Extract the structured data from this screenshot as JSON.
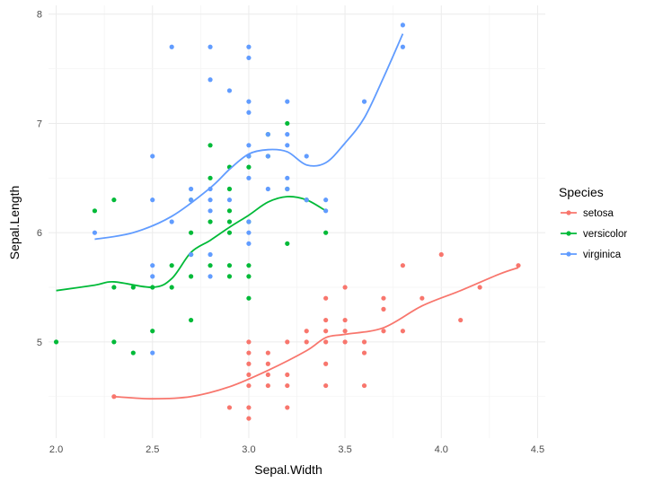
{
  "chart_data": {
    "type": "scatter",
    "xlabel": "Sepal.Width",
    "ylabel": "Sepal.Length",
    "xlim": [
      1.96,
      4.54
    ],
    "ylim": [
      4.12,
      8.08
    ],
    "x_ticks": [
      2.0,
      2.5,
      3.0,
      3.5,
      4.0,
      4.5
    ],
    "x_tick_labels": [
      "2.0",
      "2.5",
      "3.0",
      "3.5",
      "4.0",
      "4.5"
    ],
    "y_ticks": [
      5,
      6,
      7,
      8
    ],
    "y_tick_labels": [
      "5",
      "6",
      "7",
      "8"
    ],
    "grid": true,
    "legend": {
      "title": "Species",
      "position": "right"
    },
    "series": [
      {
        "name": "setosa",
        "color": "#F8766D",
        "points": [
          [
            2.3,
            4.5
          ],
          [
            2.9,
            4.4
          ],
          [
            3.0,
            4.4
          ],
          [
            3.2,
            4.4
          ],
          [
            3.0,
            4.3
          ],
          [
            3.0,
            4.6
          ],
          [
            3.1,
            4.6
          ],
          [
            3.2,
            4.6
          ],
          [
            3.4,
            4.6
          ],
          [
            3.6,
            4.6
          ],
          [
            3.0,
            4.7
          ],
          [
            3.1,
            4.7
          ],
          [
            3.2,
            4.7
          ],
          [
            3.0,
            4.8
          ],
          [
            3.1,
            4.8
          ],
          [
            3.4,
            4.8
          ],
          [
            3.0,
            4.9
          ],
          [
            3.1,
            4.9
          ],
          [
            3.6,
            4.9
          ],
          [
            3.0,
            5.0
          ],
          [
            3.2,
            5.0
          ],
          [
            3.3,
            5.0
          ],
          [
            3.4,
            5.0
          ],
          [
            3.5,
            5.0
          ],
          [
            3.6,
            5.0
          ],
          [
            3.3,
            5.1
          ],
          [
            3.4,
            5.1
          ],
          [
            3.5,
            5.1
          ],
          [
            3.7,
            5.1
          ],
          [
            3.8,
            5.1
          ],
          [
            3.4,
            5.2
          ],
          [
            3.5,
            5.2
          ],
          [
            4.1,
            5.2
          ],
          [
            3.7,
            5.3
          ],
          [
            3.4,
            5.4
          ],
          [
            3.7,
            5.4
          ],
          [
            3.9,
            5.4
          ],
          [
            3.5,
            5.5
          ],
          [
            4.2,
            5.5
          ],
          [
            3.8,
            5.7
          ],
          [
            4.4,
            5.7
          ],
          [
            4.0,
            5.8
          ]
        ],
        "trend": [
          [
            2.3,
            4.5
          ],
          [
            2.5,
            4.48
          ],
          [
            2.7,
            4.5
          ],
          [
            2.9,
            4.59
          ],
          [
            3.1,
            4.74
          ],
          [
            3.3,
            4.92
          ],
          [
            3.4,
            5.04
          ],
          [
            3.5,
            5.07
          ],
          [
            3.7,
            5.13
          ],
          [
            3.9,
            5.33
          ],
          [
            4.1,
            5.47
          ],
          [
            4.3,
            5.62
          ],
          [
            4.4,
            5.68
          ]
        ]
      },
      {
        "name": "versicolor",
        "color": "#00BA38",
        "points": [
          [
            2.0,
            5.0
          ],
          [
            2.2,
            6.2
          ],
          [
            2.3,
            6.3
          ],
          [
            2.3,
            5.5
          ],
          [
            2.3,
            5.0
          ],
          [
            2.4,
            5.5
          ],
          [
            2.4,
            4.9
          ],
          [
            2.5,
            5.5
          ],
          [
            2.5,
            5.1
          ],
          [
            2.6,
            5.5
          ],
          [
            2.6,
            5.7
          ],
          [
            2.7,
            5.2
          ],
          [
            2.7,
            5.6
          ],
          [
            2.7,
            5.8
          ],
          [
            2.7,
            6.0
          ],
          [
            2.7,
            6.3
          ],
          [
            2.8,
            5.7
          ],
          [
            2.8,
            6.1
          ],
          [
            2.8,
            6.5
          ],
          [
            2.8,
            6.8
          ],
          [
            2.9,
            5.6
          ],
          [
            2.9,
            5.7
          ],
          [
            2.9,
            6.0
          ],
          [
            2.9,
            6.1
          ],
          [
            2.9,
            6.2
          ],
          [
            2.9,
            6.4
          ],
          [
            2.9,
            6.6
          ],
          [
            3.0,
            5.4
          ],
          [
            3.0,
            5.6
          ],
          [
            3.0,
            5.7
          ],
          [
            3.0,
            6.1
          ],
          [
            3.0,
            6.6
          ],
          [
            3.0,
            6.7
          ],
          [
            3.1,
            6.7
          ],
          [
            3.1,
            6.9
          ],
          [
            3.2,
            5.9
          ],
          [
            3.2,
            6.4
          ],
          [
            3.2,
            7.0
          ],
          [
            3.3,
            6.3
          ],
          [
            3.4,
            6.0
          ]
        ],
        "trend": [
          [
            2.0,
            5.47
          ],
          [
            2.2,
            5.52
          ],
          [
            2.3,
            5.55
          ],
          [
            2.5,
            5.5
          ],
          [
            2.6,
            5.58
          ],
          [
            2.7,
            5.82
          ],
          [
            2.8,
            5.93
          ],
          [
            2.9,
            6.05
          ],
          [
            3.0,
            6.16
          ],
          [
            3.1,
            6.28
          ],
          [
            3.2,
            6.33
          ],
          [
            3.3,
            6.3
          ],
          [
            3.4,
            6.2
          ]
        ]
      },
      {
        "name": "virginica",
        "color": "#619CFF",
        "points": [
          [
            2.2,
            6.0
          ],
          [
            2.5,
            4.9
          ],
          [
            2.5,
            5.6
          ],
          [
            2.5,
            5.7
          ],
          [
            2.5,
            6.3
          ],
          [
            2.5,
            6.7
          ],
          [
            2.6,
            6.1
          ],
          [
            2.6,
            7.7
          ],
          [
            2.7,
            5.8
          ],
          [
            2.7,
            6.3
          ],
          [
            2.7,
            6.4
          ],
          [
            2.8,
            5.6
          ],
          [
            2.8,
            5.8
          ],
          [
            2.8,
            6.2
          ],
          [
            2.8,
            6.3
          ],
          [
            2.8,
            6.4
          ],
          [
            2.8,
            7.4
          ],
          [
            2.8,
            7.7
          ],
          [
            2.9,
            6.3
          ],
          [
            2.9,
            7.3
          ],
          [
            3.0,
            5.9
          ],
          [
            3.0,
            6.0
          ],
          [
            3.0,
            6.1
          ],
          [
            3.0,
            6.5
          ],
          [
            3.0,
            6.7
          ],
          [
            3.0,
            6.8
          ],
          [
            3.0,
            7.1
          ],
          [
            3.0,
            7.2
          ],
          [
            3.0,
            7.6
          ],
          [
            3.0,
            7.7
          ],
          [
            3.1,
            6.4
          ],
          [
            3.1,
            6.7
          ],
          [
            3.1,
            6.9
          ],
          [
            3.2,
            6.4
          ],
          [
            3.2,
            6.5
          ],
          [
            3.2,
            6.8
          ],
          [
            3.2,
            6.9
          ],
          [
            3.2,
            7.2
          ],
          [
            3.3,
            6.3
          ],
          [
            3.3,
            6.7
          ],
          [
            3.4,
            6.2
          ],
          [
            3.4,
            6.3
          ],
          [
            3.6,
            7.2
          ],
          [
            3.8,
            7.7
          ],
          [
            3.8,
            7.9
          ]
        ],
        "trend": [
          [
            2.2,
            5.94
          ],
          [
            2.4,
            6.0
          ],
          [
            2.6,
            6.15
          ],
          [
            2.8,
            6.41
          ],
          [
            2.9,
            6.58
          ],
          [
            3.0,
            6.72
          ],
          [
            3.1,
            6.76
          ],
          [
            3.2,
            6.74
          ],
          [
            3.3,
            6.62
          ],
          [
            3.4,
            6.64
          ],
          [
            3.5,
            6.82
          ],
          [
            3.6,
            7.05
          ],
          [
            3.7,
            7.42
          ],
          [
            3.8,
            7.82
          ]
        ]
      }
    ]
  }
}
